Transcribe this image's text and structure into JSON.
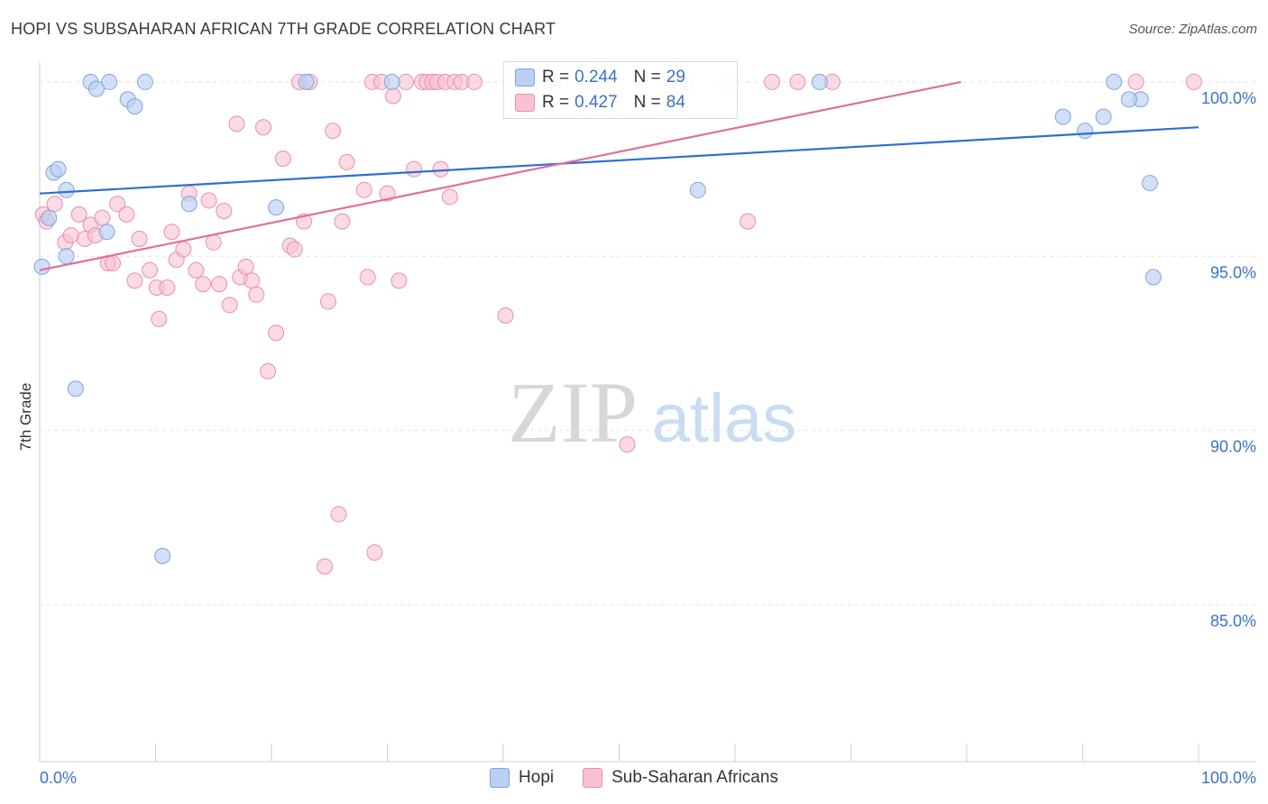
{
  "title": "HOPI VS SUBSAHARAN AFRICAN 7TH GRADE CORRELATION CHART",
  "source": "Source: ZipAtlas.com",
  "watermark": {
    "zip": "ZIP",
    "atlas": "atlas"
  },
  "legend_top": {
    "rows": [
      {
        "r_label": "R =",
        "r_value": "0.244",
        "n_label": "N =",
        "n_value": "29"
      },
      {
        "r_label": "R =",
        "r_value": "0.427",
        "n_label": "N =",
        "n_value": "84"
      }
    ]
  },
  "legend_bottom": {
    "series": [
      "Hopi",
      "Sub-Saharan Africans"
    ]
  },
  "colors": {
    "hopi_fill": "#b9d0f2",
    "hopi_stroke": "#7fa5dd",
    "hopi_line": "#2f6fd0",
    "ssa_fill": "#f7c1d2",
    "ssa_stroke": "#ea8fae",
    "ssa_line": "#e0709a",
    "tick_label": "#3b72c8"
  },
  "chart_data": {
    "type": "scatter",
    "title": "HOPI VS SUBSAHARAN AFRICAN 7TH GRADE CORRELATION CHART",
    "xlabel": "",
    "ylabel": "7th Grade",
    "xlim": [
      0,
      100
    ],
    "ylim": [
      80.5,
      100.8
    ],
    "x_tick_labels": [
      "0.0%",
      "100.0%"
    ],
    "y_ticks": [
      {
        "value": 100,
        "label": "100.0%"
      },
      {
        "value": 95,
        "label": "95.0%"
      },
      {
        "value": 90,
        "label": "90.0%"
      },
      {
        "value": 85,
        "label": "85.0%"
      }
    ],
    "grid": true,
    "series": [
      {
        "name": "Hopi",
        "r": 0.244,
        "n": 29,
        "trend": {
          "x": [
            0,
            100
          ],
          "y": [
            96.8,
            98.7
          ]
        },
        "points": [
          [
            0.2,
            94.7
          ],
          [
            1.2,
            97.4
          ],
          [
            1.6,
            97.5
          ],
          [
            0.8,
            96.1
          ],
          [
            2.3,
            96.9
          ],
          [
            4.4,
            100.0
          ],
          [
            6.0,
            100.0
          ],
          [
            4.9,
            99.8
          ],
          [
            7.6,
            99.5
          ],
          [
            8.2,
            99.3
          ],
          [
            9.1,
            100.0
          ],
          [
            2.3,
            95.0
          ],
          [
            5.8,
            95.7
          ],
          [
            3.1,
            91.2
          ],
          [
            10.6,
            86.4
          ],
          [
            12.9,
            96.5
          ],
          [
            20.4,
            96.4
          ],
          [
            23.0,
            100.0
          ],
          [
            30.4,
            100.0
          ],
          [
            56.8,
            96.9
          ],
          [
            67.3,
            100.0
          ],
          [
            88.3,
            99.0
          ],
          [
            90.2,
            98.6
          ],
          [
            91.8,
            99.0
          ],
          [
            92.7,
            100.0
          ],
          [
            95.0,
            99.5
          ],
          [
            94.0,
            99.5
          ],
          [
            95.8,
            97.1
          ],
          [
            96.1,
            94.4
          ]
        ]
      },
      {
        "name": "Sub-Saharan Africans",
        "r": 0.427,
        "n": 84,
        "trend": {
          "x": [
            0,
            79.5
          ],
          "y": [
            94.6,
            100.0
          ]
        },
        "points": [
          [
            0.3,
            96.2
          ],
          [
            0.6,
            96.0
          ],
          [
            1.3,
            96.5
          ],
          [
            2.2,
            95.4
          ],
          [
            2.7,
            95.6
          ],
          [
            3.4,
            96.2
          ],
          [
            3.9,
            95.5
          ],
          [
            4.4,
            95.9
          ],
          [
            4.8,
            95.6
          ],
          [
            5.4,
            96.1
          ],
          [
            5.9,
            94.8
          ],
          [
            6.3,
            94.8
          ],
          [
            6.7,
            96.5
          ],
          [
            7.5,
            96.2
          ],
          [
            8.2,
            94.3
          ],
          [
            8.6,
            95.5
          ],
          [
            9.5,
            94.6
          ],
          [
            10.1,
            94.1
          ],
          [
            10.3,
            93.2
          ],
          [
            11.0,
            94.1
          ],
          [
            11.4,
            95.7
          ],
          [
            11.8,
            94.9
          ],
          [
            12.4,
            95.2
          ],
          [
            12.9,
            96.8
          ],
          [
            13.5,
            94.6
          ],
          [
            14.1,
            94.2
          ],
          [
            14.6,
            96.6
          ],
          [
            15.0,
            95.4
          ],
          [
            15.5,
            94.2
          ],
          [
            15.9,
            96.3
          ],
          [
            16.4,
            93.6
          ],
          [
            17.0,
            98.8
          ],
          [
            17.3,
            94.4
          ],
          [
            17.8,
            94.7
          ],
          [
            18.3,
            94.3
          ],
          [
            18.7,
            93.9
          ],
          [
            19.3,
            98.7
          ],
          [
            19.7,
            91.7
          ],
          [
            20.4,
            92.8
          ],
          [
            21.0,
            97.8
          ],
          [
            21.6,
            95.3
          ],
          [
            22.0,
            95.2
          ],
          [
            22.4,
            100.0
          ],
          [
            22.8,
            96.0
          ],
          [
            23.3,
            100.0
          ],
          [
            24.6,
            86.1
          ],
          [
            24.9,
            93.7
          ],
          [
            25.3,
            98.6
          ],
          [
            25.8,
            87.6
          ],
          [
            26.1,
            96.0
          ],
          [
            26.5,
            97.7
          ],
          [
            28.0,
            96.9
          ],
          [
            28.3,
            94.4
          ],
          [
            28.7,
            100.0
          ],
          [
            28.9,
            86.5
          ],
          [
            29.5,
            100.0
          ],
          [
            30.0,
            96.8
          ],
          [
            30.5,
            99.6
          ],
          [
            31.0,
            94.3
          ],
          [
            31.6,
            100.0
          ],
          [
            32.3,
            97.5
          ],
          [
            33.0,
            100.0
          ],
          [
            33.4,
            100.0
          ],
          [
            33.9,
            100.0
          ],
          [
            34.3,
            100.0
          ],
          [
            34.6,
            97.5
          ],
          [
            35.0,
            100.0
          ],
          [
            35.4,
            96.7
          ],
          [
            35.8,
            100.0
          ],
          [
            36.4,
            100.0
          ],
          [
            37.5,
            100.0
          ],
          [
            40.2,
            93.3
          ],
          [
            41.8,
            100.0
          ],
          [
            44.4,
            100.0
          ],
          [
            47.3,
            100.0
          ],
          [
            50.7,
            89.6
          ],
          [
            55.8,
            100.0
          ],
          [
            59.3,
            100.0
          ],
          [
            61.1,
            96.0
          ],
          [
            63.2,
            100.0
          ],
          [
            65.4,
            100.0
          ],
          [
            68.4,
            100.0
          ],
          [
            94.6,
            100.0
          ],
          [
            99.6,
            100.0
          ]
        ]
      }
    ]
  }
}
